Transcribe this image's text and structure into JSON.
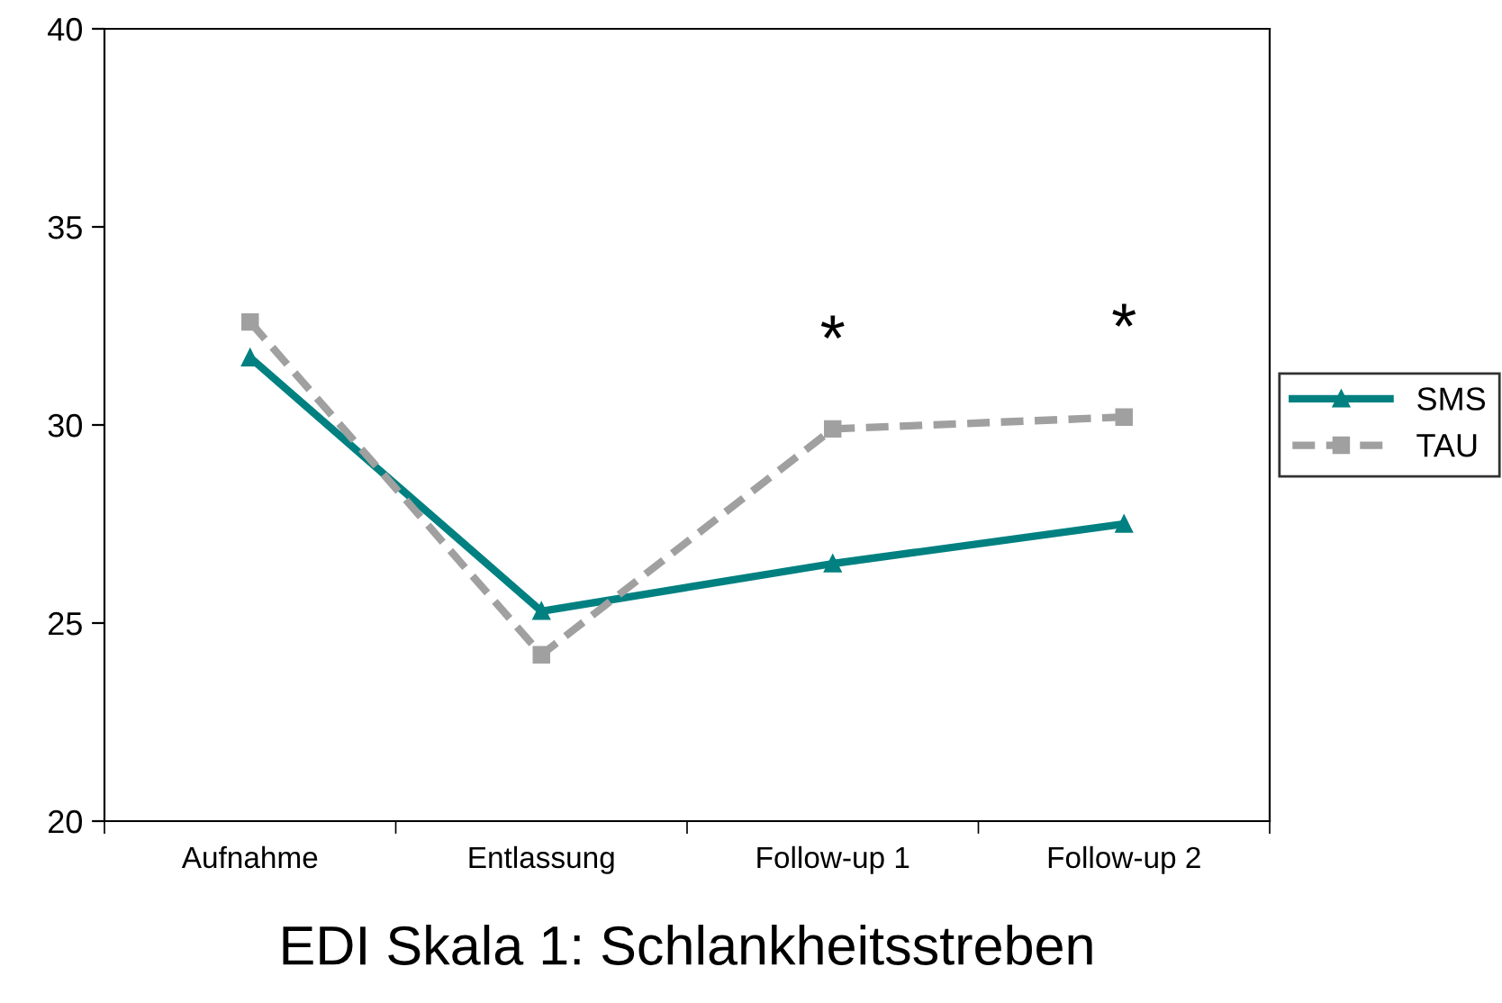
{
  "chart_data": {
    "type": "line",
    "title": "EDI Skala 1: Schlankheitsstreben",
    "categories": [
      "Aufnahme",
      "Entlassung",
      "Follow-up 1",
      "Follow-up 2"
    ],
    "series": [
      {
        "name": "SMS",
        "color": "#008080",
        "values": [
          31.7,
          25.3,
          26.5,
          27.5
        ],
        "marker": "triangle",
        "line_style": "solid"
      },
      {
        "name": "TAU",
        "color": "#a0a0a0",
        "values": [
          32.6,
          24.2,
          29.9,
          30.2
        ],
        "marker": "square",
        "line_style": "dashed"
      }
    ],
    "ylim": [
      20,
      40
    ],
    "yticks": [
      20,
      25,
      30,
      35,
      40
    ],
    "grid": false,
    "legend": "right",
    "annotations": [
      "*",
      "*"
    ]
  }
}
